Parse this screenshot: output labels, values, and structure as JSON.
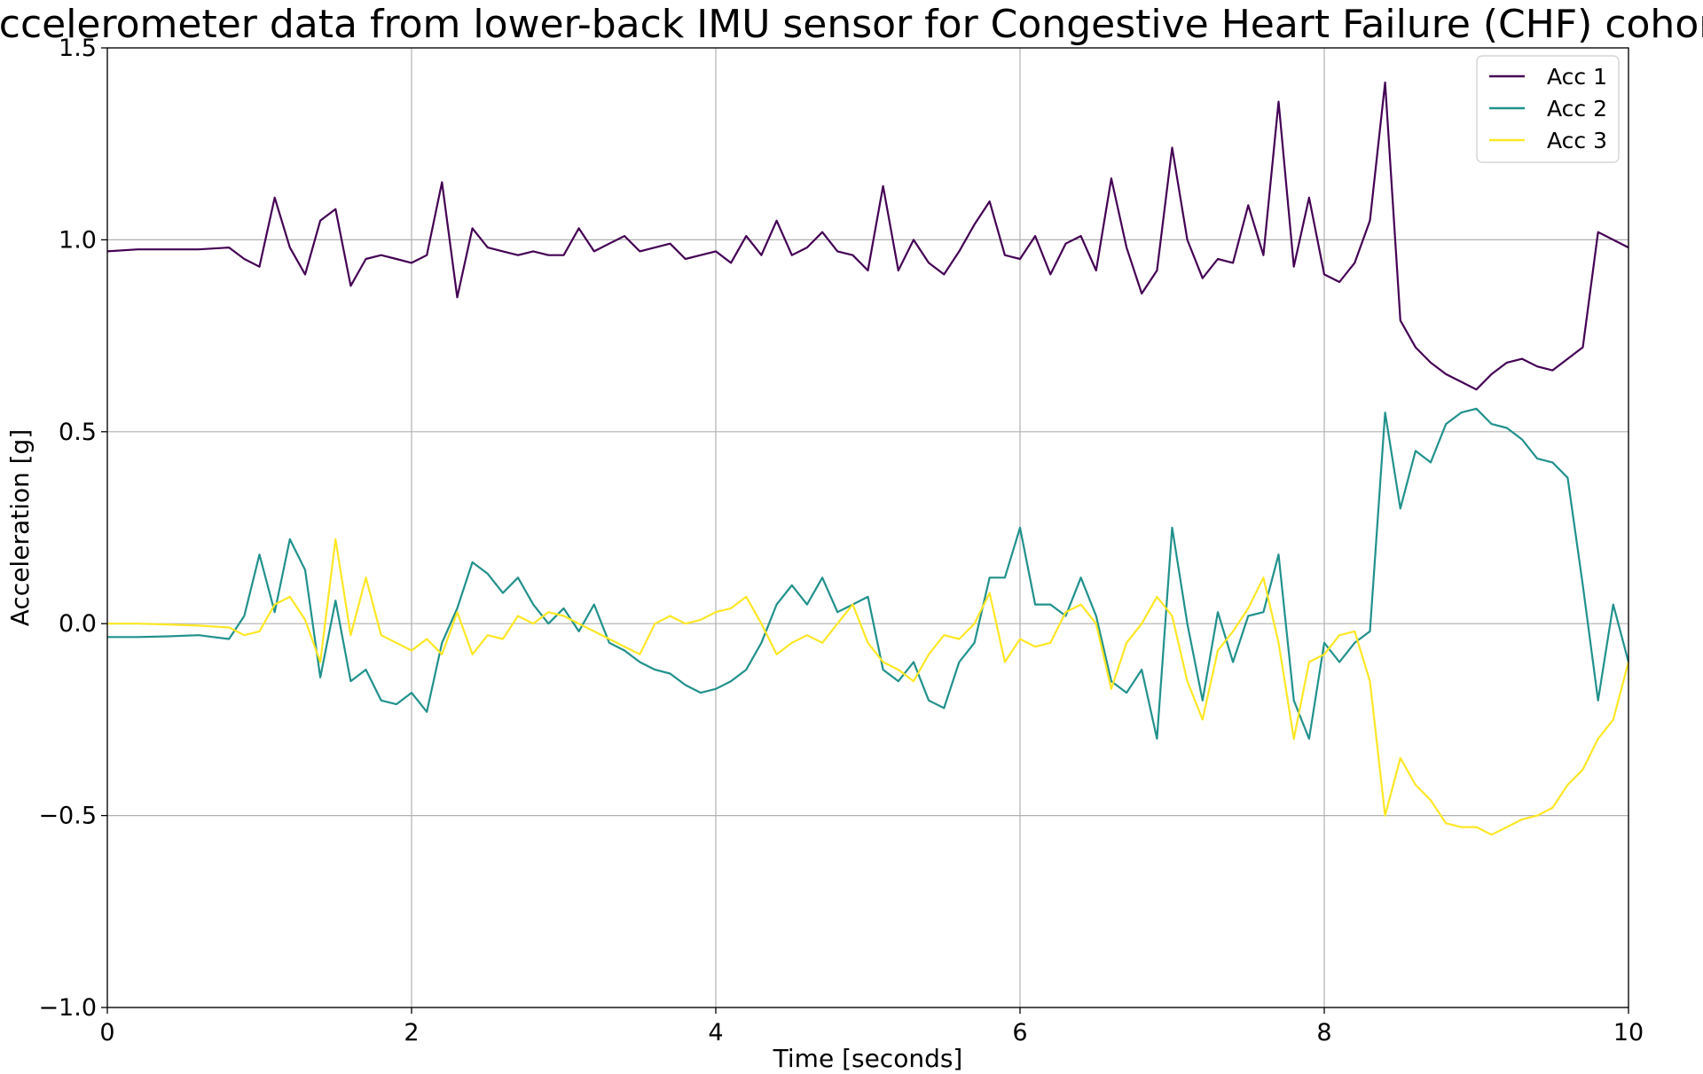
{
  "chart_data": {
    "type": "line",
    "title": "Accelerometer data from lower-back IMU sensor for Congestive Heart Failure (CHF) cohort",
    "xlabel": "Time [seconds]",
    "ylabel": "Acceleration [g]",
    "xlim": [
      0,
      10
    ],
    "ylim": [
      -1.0,
      1.5
    ],
    "xticks": [
      0,
      2,
      4,
      6,
      8,
      10
    ],
    "xtick_labels": [
      "0",
      "2",
      "4",
      "6",
      "8",
      "10"
    ],
    "yticks": [
      -1.0,
      -0.5,
      0.0,
      0.5,
      1.0,
      1.5
    ],
    "ytick_labels": [
      "−1.0",
      "−0.5",
      "0.0",
      "0.5",
      "1.0",
      "1.5"
    ],
    "grid": true,
    "legend_position": "top-right",
    "x": [
      0.0,
      0.2,
      0.4,
      0.6,
      0.8,
      0.9,
      1.0,
      1.1,
      1.2,
      1.3,
      1.4,
      1.5,
      1.6,
      1.7,
      1.8,
      1.9,
      2.0,
      2.1,
      2.2,
      2.3,
      2.4,
      2.5,
      2.6,
      2.7,
      2.8,
      2.9,
      3.0,
      3.1,
      3.2,
      3.3,
      3.4,
      3.5,
      3.6,
      3.7,
      3.8,
      3.9,
      4.0,
      4.1,
      4.2,
      4.3,
      4.4,
      4.5,
      4.6,
      4.7,
      4.8,
      4.9,
      5.0,
      5.1,
      5.2,
      5.3,
      5.4,
      5.5,
      5.6,
      5.7,
      5.8,
      5.9,
      6.0,
      6.1,
      6.2,
      6.3,
      6.4,
      6.5,
      6.6,
      6.7,
      6.8,
      6.9,
      7.0,
      7.1,
      7.2,
      7.3,
      7.4,
      7.5,
      7.6,
      7.7,
      7.8,
      7.9,
      8.0,
      8.1,
      8.2,
      8.3,
      8.4,
      8.5,
      8.6,
      8.7,
      8.8,
      8.9,
      9.0,
      9.1,
      9.2,
      9.3,
      9.4,
      9.5,
      9.6,
      9.7,
      9.8,
      9.9,
      10.0
    ],
    "series": [
      {
        "name": "Acc 1",
        "color": "#440154",
        "values": [
          0.97,
          0.975,
          0.975,
          0.975,
          0.98,
          0.95,
          0.93,
          1.11,
          0.98,
          0.91,
          1.05,
          1.08,
          0.88,
          0.95,
          0.96,
          0.95,
          0.94,
          0.96,
          1.15,
          0.85,
          1.03,
          0.98,
          0.97,
          0.96,
          0.97,
          0.96,
          0.96,
          1.03,
          0.97,
          0.99,
          1.01,
          0.97,
          0.98,
          0.99,
          0.95,
          0.96,
          0.97,
          0.94,
          1.01,
          0.96,
          1.05,
          0.96,
          0.98,
          1.02,
          0.97,
          0.96,
          0.92,
          1.14,
          0.92,
          1.0,
          0.94,
          0.91,
          0.97,
          1.04,
          1.1,
          0.96,
          0.95,
          1.01,
          0.91,
          0.99,
          1.01,
          0.92,
          1.16,
          0.98,
          0.86,
          0.92,
          1.24,
          1.0,
          0.9,
          0.95,
          0.94,
          1.09,
          0.96,
          1.36,
          0.93,
          1.11,
          0.91,
          0.89,
          0.94,
          1.05,
          1.41,
          0.79,
          0.72,
          0.68,
          0.65,
          0.63,
          0.61,
          0.65,
          0.68,
          0.69,
          0.67,
          0.66,
          0.69,
          0.72,
          1.02,
          1.0,
          0.98
        ]
      },
      {
        "name": "Acc 2",
        "color": "#21918c",
        "values": [
          -0.035,
          -0.035,
          -0.033,
          -0.03,
          -0.04,
          0.02,
          0.18,
          0.03,
          0.22,
          0.14,
          -0.14,
          0.06,
          -0.15,
          -0.12,
          -0.2,
          -0.21,
          -0.18,
          -0.23,
          -0.05,
          0.04,
          0.16,
          0.13,
          0.08,
          0.12,
          0.05,
          0.0,
          0.04,
          -0.02,
          0.05,
          -0.05,
          -0.07,
          -0.1,
          -0.12,
          -0.13,
          -0.16,
          -0.18,
          -0.17,
          -0.15,
          -0.12,
          -0.05,
          0.05,
          0.1,
          0.05,
          0.12,
          0.03,
          0.05,
          0.07,
          -0.12,
          -0.15,
          -0.1,
          -0.2,
          -0.22,
          -0.1,
          -0.05,
          0.12,
          0.12,
          0.25,
          0.05,
          0.05,
          0.02,
          0.12,
          0.02,
          -0.15,
          -0.18,
          -0.12,
          -0.3,
          0.25,
          0.0,
          -0.2,
          0.03,
          -0.1,
          0.02,
          0.03,
          0.18,
          -0.2,
          -0.3,
          -0.05,
          -0.1,
          -0.05,
          -0.02,
          0.55,
          0.3,
          0.45,
          0.42,
          0.52,
          0.55,
          0.56,
          0.52,
          0.51,
          0.48,
          0.43,
          0.42,
          0.38,
          0.1,
          -0.2,
          0.05,
          -0.1
        ]
      },
      {
        "name": "Acc 3",
        "color": "#fde725",
        "values": [
          0.0,
          0.0,
          -0.002,
          -0.005,
          -0.01,
          -0.03,
          -0.02,
          0.05,
          0.07,
          0.01,
          -0.1,
          0.22,
          -0.03,
          0.12,
          -0.03,
          -0.05,
          -0.07,
          -0.04,
          -0.08,
          0.03,
          -0.08,
          -0.03,
          -0.04,
          0.02,
          0.0,
          0.03,
          0.02,
          0.0,
          -0.02,
          -0.04,
          -0.06,
          -0.08,
          0.0,
          0.02,
          0.0,
          0.01,
          0.03,
          0.04,
          0.07,
          0.0,
          -0.08,
          -0.05,
          -0.03,
          -0.05,
          0.0,
          0.05,
          -0.05,
          -0.1,
          -0.12,
          -0.15,
          -0.08,
          -0.03,
          -0.04,
          0.0,
          0.08,
          -0.1,
          -0.04,
          -0.06,
          -0.05,
          0.03,
          0.05,
          0.0,
          -0.17,
          -0.05,
          0.0,
          0.07,
          0.02,
          -0.15,
          -0.25,
          -0.07,
          -0.02,
          0.04,
          0.12,
          -0.05,
          -0.3,
          -0.1,
          -0.08,
          -0.03,
          -0.02,
          -0.15,
          -0.5,
          -0.35,
          -0.42,
          -0.46,
          -0.52,
          -0.53,
          -0.53,
          -0.55,
          -0.53,
          -0.51,
          -0.5,
          -0.48,
          -0.42,
          -0.38,
          -0.3,
          -0.25,
          -0.1
        ]
      }
    ]
  }
}
